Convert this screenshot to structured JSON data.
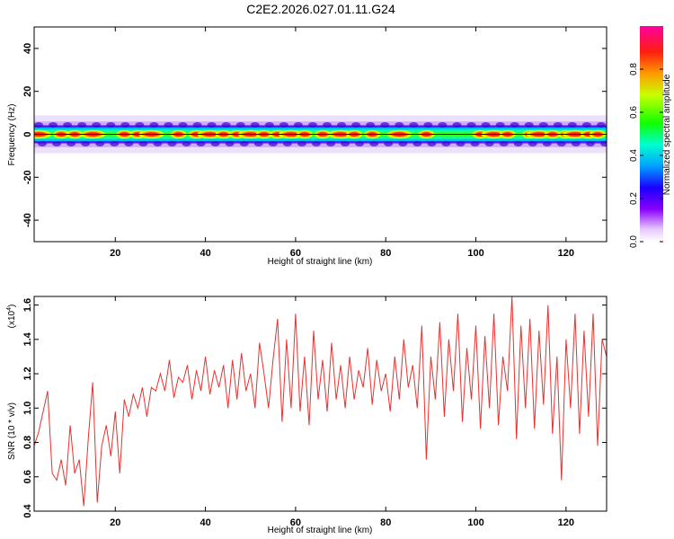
{
  "title": "C2E2.2026.027.01.11.G24",
  "chart_data": [
    {
      "type": "heatmap",
      "title": "C2E2.2026.027.01.11.G24",
      "xlabel": "Height of straight line (km)",
      "ylabel": "Frequency (Hz)",
      "xlim": [
        2,
        129
      ],
      "ylim": [
        -50,
        50
      ],
      "xticks": [
        20,
        40,
        60,
        80,
        100,
        120
      ],
      "yticks": [
        -40,
        -20,
        0,
        20,
        40
      ],
      "colorbar": {
        "label": "Normalized spectral amplitude",
        "range": [
          0,
          1
        ],
        "ticks": [
          0.0,
          0.2,
          0.4,
          0.6,
          0.8
        ],
        "tick_labels": [
          "0.0",
          "0.2",
          "0.4",
          "0.6",
          "0.8"
        ]
      },
      "band": {
        "center_hz": 0,
        "halfwidth_hz": 4,
        "peak_heights_km": [
          3,
          8,
          11,
          15,
          22,
          25,
          28,
          34,
          38,
          41,
          44,
          47,
          50,
          53,
          56,
          59,
          62,
          66,
          70,
          73,
          77,
          83,
          89,
          101,
          104,
          107,
          112,
          114,
          117,
          120,
          122,
          125,
          127
        ]
      }
    },
    {
      "type": "line",
      "xlabel": "Height of straight line (km)",
      "ylabel": "SNR (10 * v/v)",
      "y_scale_label": "(x10",
      "y_scale_exp": "4",
      "xlim": [
        2,
        129
      ],
      "ylim": [
        0.4,
        1.65
      ],
      "xticks": [
        20,
        40,
        60,
        80,
        100,
        120
      ],
      "yticks": [
        0.4,
        0.6,
        0.8,
        1.0,
        1.2,
        1.4,
        1.6
      ],
      "ytick_labels": [
        "0.4",
        "0.6",
        "0.8",
        "1.0",
        "1.2",
        "1.4",
        "1.6"
      ],
      "color": "#e8312f",
      "series": [
        {
          "name": "SNR",
          "x": [
            2,
            3,
            4,
            5,
            6,
            7,
            8,
            9,
            10,
            11,
            12,
            13,
            14,
            15,
            16,
            17,
            18,
            19,
            20,
            21,
            22,
            23,
            24,
            25,
            26,
            27,
            28,
            29,
            30,
            31,
            32,
            33,
            34,
            35,
            36,
            37,
            38,
            39,
            40,
            41,
            42,
            43,
            44,
            45,
            46,
            47,
            48,
            49,
            50,
            51,
            52,
            53,
            54,
            55,
            56,
            57,
            58,
            59,
            60,
            61,
            62,
            63,
            64,
            65,
            66,
            67,
            68,
            69,
            70,
            71,
            72,
            73,
            74,
            75,
            76,
            77,
            78,
            79,
            80,
            81,
            82,
            83,
            84,
            85,
            86,
            87,
            88,
            89,
            90,
            91,
            92,
            93,
            94,
            95,
            96,
            97,
            98,
            99,
            100,
            101,
            102,
            103,
            104,
            105,
            106,
            107,
            108,
            109,
            110,
            111,
            112,
            113,
            114,
            115,
            116,
            117,
            118,
            119,
            120,
            121,
            122,
            123,
            124,
            125,
            126,
            127,
            128,
            129
          ],
          "values": [
            0.78,
            0.86,
            0.98,
            1.1,
            0.62,
            0.58,
            0.7,
            0.55,
            0.9,
            0.62,
            0.7,
            0.43,
            0.82,
            1.15,
            0.45,
            0.78,
            0.9,
            0.72,
            0.98,
            0.62,
            1.05,
            0.95,
            1.08,
            1.0,
            1.12,
            0.95,
            1.12,
            1.1,
            1.2,
            1.1,
            1.28,
            1.06,
            1.18,
            1.15,
            1.25,
            1.05,
            1.22,
            1.1,
            1.3,
            1.08,
            1.22,
            1.12,
            1.25,
            1.0,
            1.28,
            1.05,
            1.32,
            1.1,
            1.2,
            1.0,
            1.38,
            1.2,
            1.0,
            1.28,
            1.52,
            0.92,
            1.4,
            1.0,
            1.55,
            0.98,
            1.3,
            0.9,
            1.45,
            1.05,
            1.28,
            0.98,
            1.38,
            1.05,
            1.25,
            1.0,
            1.3,
            1.05,
            1.22,
            1.12,
            1.35,
            1.02,
            1.28,
            1.1,
            1.2,
            0.98,
            1.3,
            1.05,
            1.4,
            1.12,
            1.25,
            1.0,
            1.48,
            0.7,
            1.3,
            1.05,
            1.5,
            0.95,
            1.4,
            1.1,
            1.55,
            0.92,
            1.35,
            1.05,
            1.48,
            0.88,
            1.42,
            1.0,
            1.55,
            0.9,
            1.3,
            1.1,
            1.65,
            0.82,
            1.48,
            1.0,
            1.52,
            0.88,
            1.45,
            1.02,
            1.6,
            0.85,
            1.3,
            0.58,
            1.4,
            1.0,
            1.55,
            0.85,
            1.45,
            0.95,
            1.55,
            0.78,
            1.4,
            1.3
          ]
        }
      ]
    }
  ]
}
